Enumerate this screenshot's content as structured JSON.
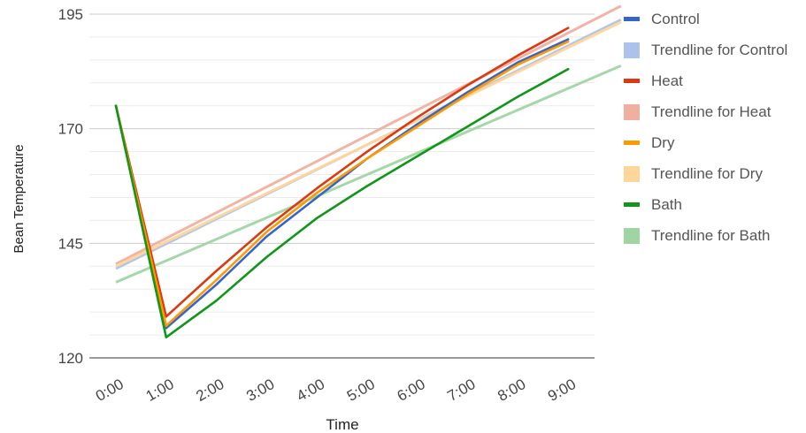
{
  "chart_data": {
    "type": "line",
    "title": "",
    "xlabel": "Time",
    "ylabel": "Bean Temperature",
    "x": [
      "0:00",
      "1:00",
      "2:00",
      "3:00",
      "4:00",
      "5:00",
      "6:00",
      "7:00",
      "8:00",
      "9:00"
    ],
    "y_ticks": [
      120,
      145,
      170,
      195
    ],
    "ylim": [
      120,
      195
    ],
    "minor_grid_step": 5,
    "grid": true,
    "legend_position": "right",
    "series": [
      {
        "name": "Control",
        "color": "#3366cc",
        "kind": "line",
        "values": [
          175,
          126.5,
          136,
          146.5,
          155,
          163.5,
          171,
          178,
          184.5,
          189.5
        ]
      },
      {
        "name": "Trendline for Control",
        "color": "#adc2eb",
        "kind": "trendline",
        "values": [
          139.5,
          144.9,
          150.3,
          155.7,
          161.1,
          166.5,
          171.9,
          177.3,
          182.7,
          188.1
        ],
        "extend_to_index": 10.05
      },
      {
        "name": "Heat",
        "color": "#dc3912",
        "kind": "line",
        "values": [
          175,
          129,
          139,
          148.5,
          157,
          165,
          172.5,
          179.5,
          186,
          192
        ]
      },
      {
        "name": "Trendline for Heat",
        "color": "#f0b0a0",
        "kind": "trendline",
        "values": [
          140.5,
          146.1,
          151.7,
          157.3,
          162.9,
          168.5,
          174.1,
          179.7,
          185.3,
          190.9
        ],
        "extend_to_index": 10.05
      },
      {
        "name": "Dry",
        "color": "#ff9900",
        "kind": "line",
        "values": [
          175,
          127,
          137,
          147.5,
          156,
          163.5,
          170.5,
          177.5,
          184,
          189
        ]
      },
      {
        "name": "Trendline for Dry",
        "color": "#ffd699",
        "kind": "trendline",
        "values": [
          140,
          145.3,
          150.6,
          155.9,
          161.2,
          166.5,
          171.8,
          177.1,
          182.4,
          187.7
        ],
        "extend_to_index": 10.05
      },
      {
        "name": "Bath",
        "color": "#109618",
        "kind": "line",
        "values": [
          175,
          124.5,
          132.5,
          142,
          150.5,
          157.5,
          164,
          170.5,
          177,
          183
        ]
      },
      {
        "name": "Trendline for Bath",
        "color": "#a0d5a3",
        "kind": "trendline",
        "values": [
          136.5,
          141.2,
          145.9,
          150.6,
          155.3,
          160,
          164.7,
          169.4,
          174.1,
          178.8
        ],
        "extend_to_index": 10.05
      }
    ]
  }
}
